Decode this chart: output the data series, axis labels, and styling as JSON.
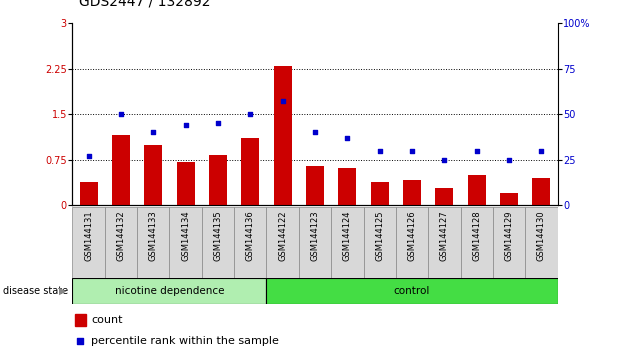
{
  "title": "GDS2447 / 132892",
  "samples": [
    "GSM144131",
    "GSM144132",
    "GSM144133",
    "GSM144134",
    "GSM144135",
    "GSM144136",
    "GSM144122",
    "GSM144123",
    "GSM144124",
    "GSM144125",
    "GSM144126",
    "GSM144127",
    "GSM144128",
    "GSM144129",
    "GSM144130"
  ],
  "bar_values": [
    0.38,
    1.15,
    1.0,
    0.72,
    0.82,
    1.1,
    2.3,
    0.65,
    0.62,
    0.38,
    0.42,
    0.28,
    0.5,
    0.2,
    0.45
  ],
  "scatter_values": [
    27,
    50,
    40,
    44,
    45,
    50,
    57,
    40,
    37,
    30,
    30,
    25,
    30,
    25,
    30
  ],
  "bar_color": "#cc0000",
  "scatter_color": "#0000cc",
  "ylim_left": [
    0,
    3
  ],
  "ylim_right": [
    0,
    100
  ],
  "yticks_left": [
    0,
    0.75,
    1.5,
    2.25,
    3
  ],
  "yticks_right": [
    0,
    25,
    50,
    75,
    100
  ],
  "ytick_labels_left": [
    "0",
    "0.75",
    "1.5",
    "2.25",
    "3"
  ],
  "ytick_labels_right": [
    "0",
    "25",
    "50",
    "75",
    "100%"
  ],
  "group1_label": "nicotine dependence",
  "group2_label": "control",
  "group1_count": 6,
  "group2_count": 9,
  "disease_state_label": "disease state",
  "legend1": "count",
  "legend2": "percentile rank within the sample",
  "bg_color": "#d8d8d8",
  "group1_color": "#b0eeb0",
  "group2_color": "#44dd44",
  "title_fontsize": 10,
  "tick_fontsize": 7,
  "label_fontsize": 8,
  "grid_dotted_vals": [
    0.75,
    1.5,
    2.25
  ]
}
